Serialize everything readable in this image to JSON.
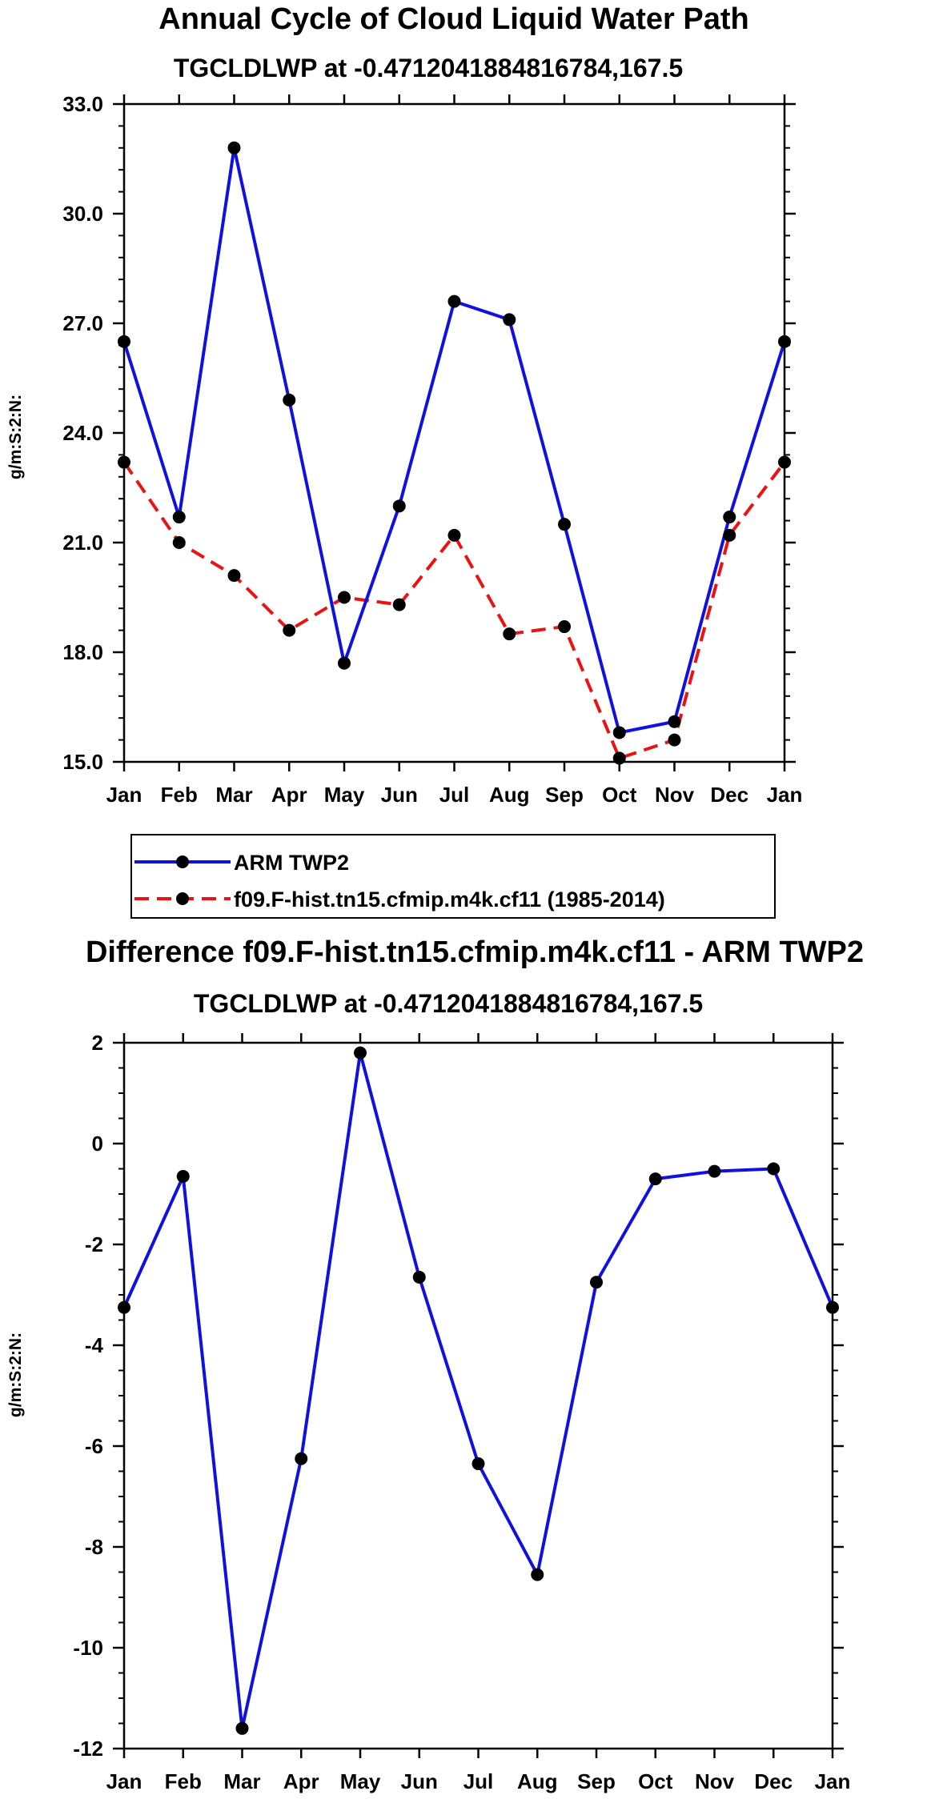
{
  "chart_data": [
    {
      "type": "line",
      "title": "Annual Cycle of Cloud Liquid Water Path",
      "subtitle": "TGCLDLWP at -0.4712041884816784,167.5",
      "xlabel": "",
      "ylabel": "g/m:S:2:N:",
      "categories": [
        "Jan",
        "Feb",
        "Mar",
        "Apr",
        "May",
        "Jun",
        "Jul",
        "Aug",
        "Sep",
        "Oct",
        "Nov",
        "Dec",
        "Jan"
      ],
      "ylim": [
        15.0,
        33.0
      ],
      "yticks": [
        "15.0",
        "18.0",
        "21.0",
        "24.0",
        "27.0",
        "30.0",
        "33.0"
      ],
      "legend_position": "bottom",
      "series": [
        {
          "name": "ARM TWP2",
          "color": "#1010e0",
          "dash": "solid",
          "values": [
            26.5,
            21.7,
            31.8,
            24.9,
            17.7,
            22.0,
            27.6,
            27.1,
            21.5,
            15.8,
            16.1,
            21.7,
            26.5
          ]
        },
        {
          "name": "f09.F-hist.tn15.cfmip.m4k.cf11 (1985-2014)",
          "color": "#ee1111",
          "dash": "dashed",
          "values": [
            23.2,
            21.0,
            20.1,
            18.6,
            19.5,
            19.3,
            21.2,
            18.5,
            18.7,
            15.1,
            15.6,
            21.2,
            23.2
          ]
        }
      ]
    },
    {
      "type": "line",
      "title": "Difference f09.F-hist.tn15.cfmip.m4k.cf11 - ARM TWP2",
      "subtitle": "TGCLDLWP at -0.4712041884816784,167.5",
      "xlabel": "",
      "ylabel": "g/m:S:2:N:",
      "categories": [
        "Jan",
        "Feb",
        "Mar",
        "Apr",
        "May",
        "Jun",
        "Jul",
        "Aug",
        "Sep",
        "Oct",
        "Nov",
        "Dec",
        "Jan"
      ],
      "ylim": [
        -12,
        2
      ],
      "yticks": [
        "-12",
        "-10",
        "-8",
        "-6",
        "-4",
        "-2",
        "0",
        "2"
      ],
      "series": [
        {
          "name": "Difference",
          "color": "#1010e0",
          "dash": "solid",
          "values": [
            -3.25,
            -0.65,
            -11.6,
            -6.25,
            1.8,
            -2.65,
            -6.35,
            -8.55,
            -2.75,
            -0.7,
            -0.55,
            -0.5,
            -3.25
          ]
        }
      ]
    }
  ]
}
